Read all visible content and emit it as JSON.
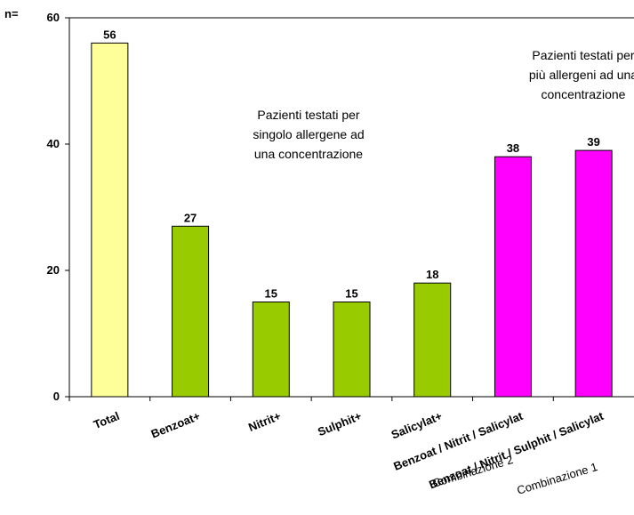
{
  "chart_data": {
    "type": "bar",
    "ylabel": "n=",
    "ylim": [
      0,
      60
    ],
    "yticks": [
      0,
      20,
      40,
      60
    ],
    "categories": [
      "Total",
      "Benzoat+",
      "Nitrit+",
      "Sulphit+",
      "Salicylat+",
      "Benzoat / Nitrit / Salicylat",
      "Benzoat / Nitrit / Sulphit / Salicylat"
    ],
    "values": [
      56,
      27,
      15,
      15,
      18,
      38,
      39
    ],
    "colors": [
      "#ffff99",
      "#99cc00",
      "#99cc00",
      "#99cc00",
      "#99cc00",
      "#ff00ff",
      "#ff00ff"
    ],
    "annotations": [
      "Pazienti testati per\nsingolo allergene ad\nuna concentrazione",
      "Pazienti testati per\npiù allergeni ad una\nconcentrazione"
    ],
    "group_labels": [
      "Combinazione 2",
      "Combinazione 1"
    ],
    "grid": false
  }
}
